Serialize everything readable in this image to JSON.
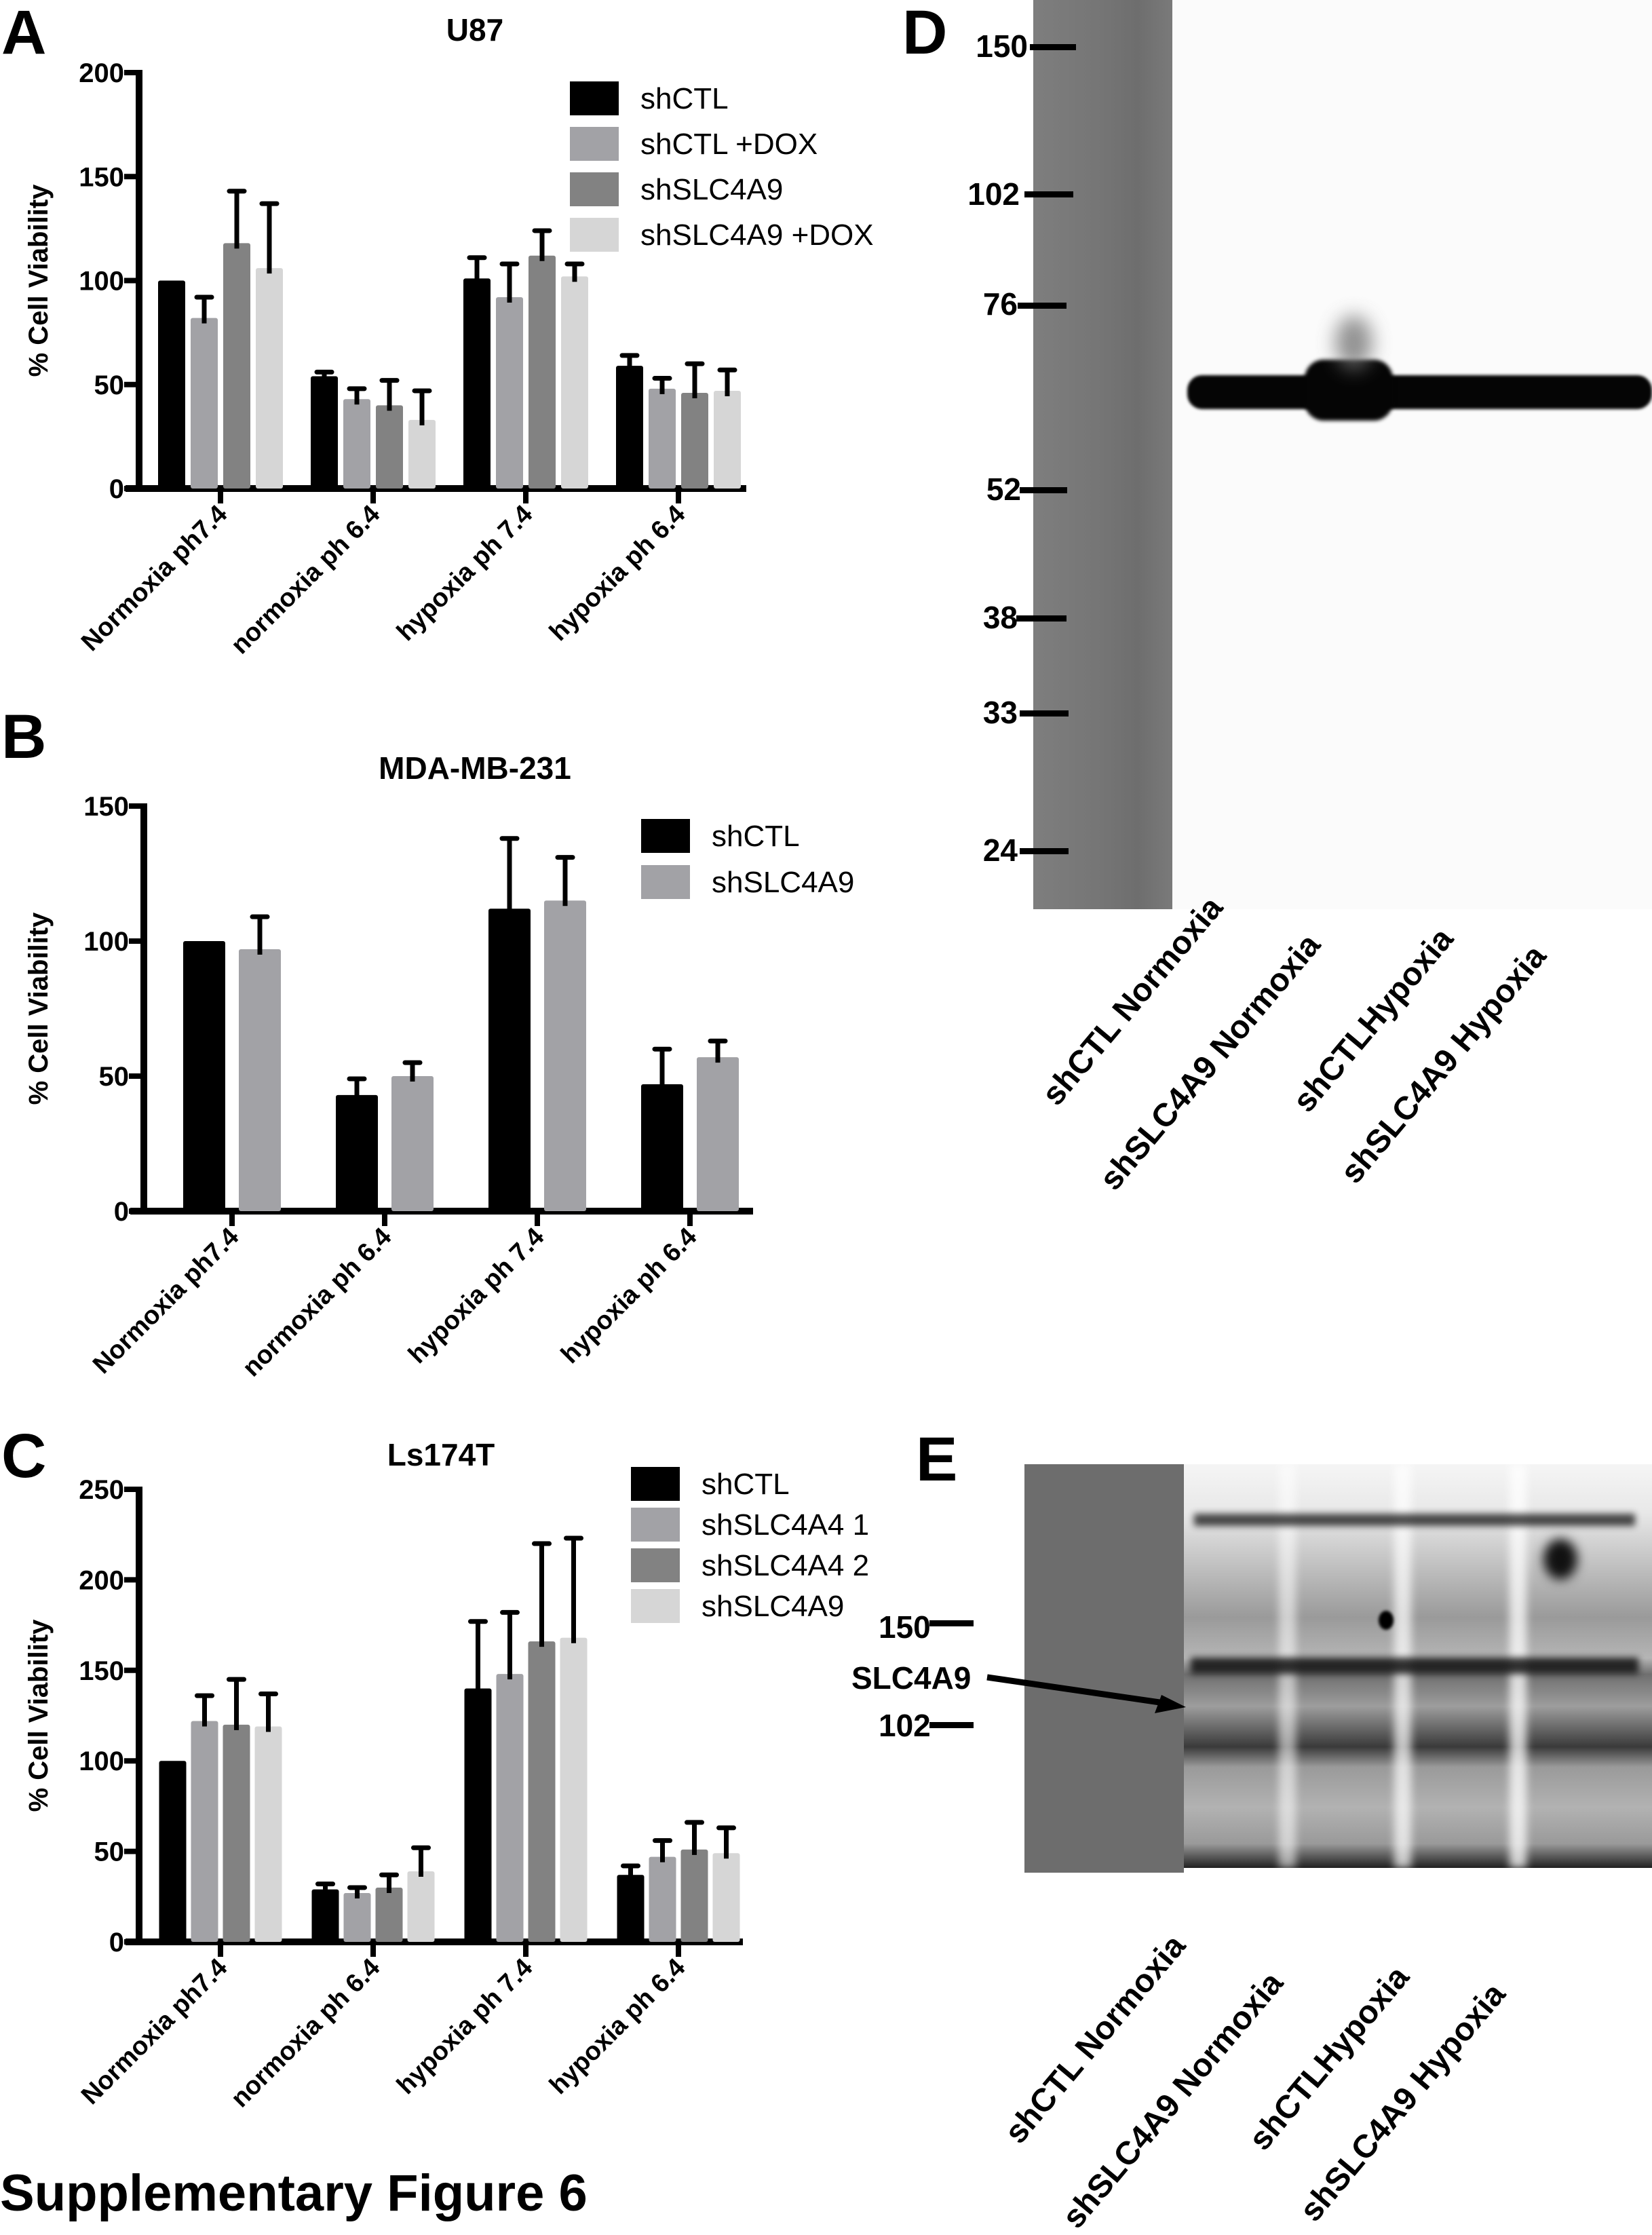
{
  "figure_title": "Supplementary Figure 6",
  "panels": {
    "A": {
      "letter": "A",
      "title": "U87"
    },
    "B": {
      "letter": "B",
      "title": "MDA-MB-231"
    },
    "C": {
      "letter": "C",
      "title": "Ls174T"
    },
    "D": {
      "letter": "D",
      "mw_markers": [
        "150",
        "102",
        "76",
        "52",
        "38",
        "33",
        "24"
      ],
      "lanes": [
        "shCTL Normoxia",
        "shSLC4A9 Normoxia",
        "shCTLHypoxia",
        "shSLC4A9 Hypoxia"
      ]
    },
    "E": {
      "letter": "E",
      "mw_markers": [
        "150",
        "102"
      ],
      "arrow_label": "SLC4A9",
      "lanes": [
        "shCTL Normoxia",
        "shSLC4A9 Normoxia",
        "shCTLHypoxia",
        "shSLC4A9 Hypoxia"
      ]
    }
  },
  "colors": {
    "shCTL": "#000000",
    "gray_mid": "#a2a2a6",
    "gray_dark": "#828282",
    "gray_light": "#d6d6d6"
  },
  "chart_data": [
    {
      "id": "A",
      "type": "bar",
      "title": "U87",
      "xlabel": "",
      "ylabel": "% Cell Viability",
      "ylim": [
        0,
        200
      ],
      "yticks": [
        0,
        50,
        100,
        150,
        200
      ],
      "categories": [
        "Normoxia ph7.4",
        "normoxia ph 6.4",
        "hypoxia ph 7.4",
        "hypoxia ph 6.4"
      ],
      "legend_position": "upper right",
      "grid": false,
      "series": [
        {
          "name": "shCTL",
          "color": "#000000",
          "values": [
            100,
            54,
            101,
            59
          ],
          "error": [
            0,
            2,
            10,
            5
          ]
        },
        {
          "name": "shCTL +DOX",
          "color": "#a2a2a6",
          "values": [
            82,
            43,
            92,
            48
          ],
          "error": [
            10,
            5,
            16,
            5
          ]
        },
        {
          "name": "shSLC4A9",
          "color": "#828282",
          "values": [
            118,
            40,
            112,
            46
          ],
          "error": [
            25,
            12,
            12,
            14
          ]
        },
        {
          "name": "shSLC4A9 +DOX",
          "color": "#d6d6d6",
          "values": [
            106,
            33,
            102,
            47
          ],
          "error": [
            31,
            14,
            6,
            10
          ]
        }
      ]
    },
    {
      "id": "B",
      "type": "bar",
      "title": "MDA-MB-231",
      "xlabel": "",
      "ylabel": "% Cell Viability",
      "ylim": [
        0,
        150
      ],
      "yticks": [
        0,
        50,
        100,
        150
      ],
      "categories": [
        "Normoxia ph7.4",
        "normoxia ph 6.4",
        "hypoxia ph 7.4",
        "hypoxia ph 6.4"
      ],
      "legend_position": "upper right",
      "grid": false,
      "series": [
        {
          "name": "shCTL",
          "color": "#000000",
          "values": [
            100,
            43,
            112,
            47
          ],
          "error": [
            0,
            6,
            26,
            13
          ]
        },
        {
          "name": "shSLC4A9",
          "color": "#a2a2a6",
          "values": [
            97,
            50,
            115,
            57
          ],
          "error": [
            12,
            5,
            16,
            6
          ]
        }
      ]
    },
    {
      "id": "C",
      "type": "bar",
      "title": "Ls174T",
      "xlabel": "",
      "ylabel": "% Cell Viability",
      "ylim": [
        0,
        250
      ],
      "yticks": [
        0,
        50,
        100,
        150,
        200,
        250
      ],
      "categories": [
        "Normoxia ph7.4",
        "normoxia ph 6.4",
        "hypoxia ph 7.4",
        "hypoxia ph 6.4"
      ],
      "legend_position": "upper right",
      "grid": false,
      "series": [
        {
          "name": "shCTL",
          "color": "#000000",
          "values": [
            100,
            29,
            140,
            37
          ],
          "error": [
            0,
            3,
            37,
            5
          ]
        },
        {
          "name": "shSLC4A4 1",
          "color": "#a2a2a6",
          "values": [
            122,
            27,
            148,
            47
          ],
          "error": [
            14,
            3,
            34,
            9
          ]
        },
        {
          "name": "shSLC4A4 2",
          "color": "#828282",
          "values": [
            120,
            30,
            166,
            51
          ],
          "error": [
            25,
            7,
            54,
            15
          ]
        },
        {
          "name": "shSLC4A9",
          "color": "#d6d6d6",
          "values": [
            119,
            39,
            168,
            49
          ],
          "error": [
            18,
            13,
            55,
            14
          ]
        }
      ]
    }
  ]
}
